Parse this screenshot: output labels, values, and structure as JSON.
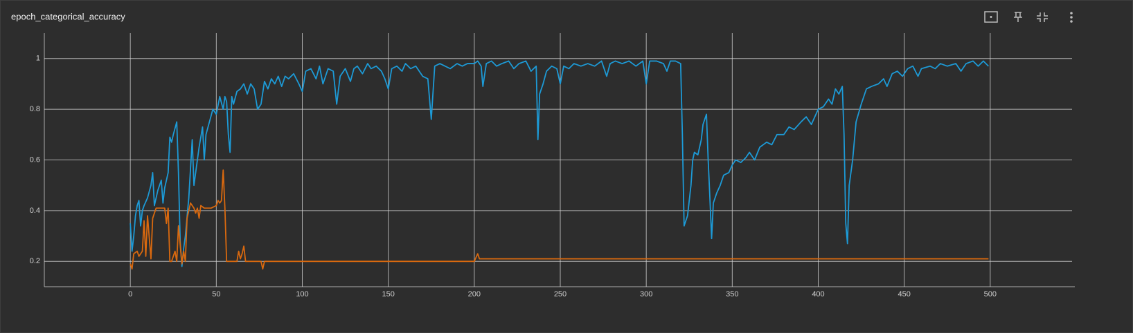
{
  "chart_data": {
    "type": "line",
    "title": "epoch_categorical_accuracy",
    "xlim": [
      -50,
      550
    ],
    "xticks": [
      0,
      50,
      100,
      150,
      200,
      250,
      300,
      350,
      400,
      450,
      500
    ],
    "ylim": [
      0.1,
      1.1
    ],
    "yticks": [
      0.2,
      0.4,
      0.6,
      0.8,
      1
    ],
    "grid": true,
    "series": [
      {
        "color": "#1d9ad6",
        "x": [
          0,
          1,
          2,
          3,
          4,
          5,
          6,
          7,
          8,
          10,
          12,
          13,
          14,
          16,
          18,
          19,
          20,
          22,
          23,
          24,
          25,
          27,
          28,
          29,
          30,
          31,
          32,
          34,
          36,
          37,
          38,
          40,
          42,
          43,
          44,
          46,
          48,
          50,
          52,
          54,
          55,
          56,
          57,
          58,
          59,
          60,
          62,
          64,
          66,
          68,
          70,
          72,
          74,
          76,
          78,
          80,
          82,
          84,
          86,
          88,
          90,
          92,
          95,
          98,
          100,
          102,
          105,
          108,
          110,
          112,
          115,
          118,
          120,
          122,
          125,
          128,
          130,
          132,
          135,
          138,
          140,
          143,
          146,
          148,
          150,
          152,
          155,
          158,
          160,
          163,
          166,
          170,
          173,
          175,
          177,
          180,
          183,
          186,
          190,
          193,
          196,
          200,
          202,
          204,
          205,
          207,
          210,
          213,
          216,
          220,
          223,
          226,
          230,
          233,
          236,
          237,
          238,
          240,
          242,
          245,
          248,
          250,
          252,
          255,
          258,
          262,
          266,
          270,
          274,
          277,
          279,
          282,
          286,
          290,
          294,
          298,
          300,
          302,
          306,
          310,
          312,
          314,
          317,
          320,
          321,
          322,
          324,
          326,
          327,
          328,
          330,
          332,
          333,
          335,
          336,
          337,
          338,
          339,
          341,
          343,
          345,
          348,
          350,
          352,
          355,
          358,
          360,
          363,
          366,
          370,
          373,
          376,
          380,
          383,
          386,
          390,
          393,
          396,
          400,
          403,
          406,
          408,
          410,
          412,
          414,
          415,
          416,
          417,
          418,
          420,
          422,
          425,
          428,
          431,
          435,
          438,
          440,
          443,
          446,
          449,
          452,
          455,
          458,
          460,
          465,
          468,
          471,
          475,
          480,
          483,
          486,
          490,
          493,
          496,
          499
        ],
        "values": [
          0.35,
          0.24,
          0.3,
          0.38,
          0.42,
          0.44,
          0.34,
          0.4,
          0.42,
          0.45,
          0.5,
          0.55,
          0.42,
          0.48,
          0.52,
          0.43,
          0.49,
          0.55,
          0.69,
          0.67,
          0.7,
          0.75,
          0.55,
          0.28,
          0.18,
          0.25,
          0.3,
          0.45,
          0.68,
          0.5,
          0.55,
          0.65,
          0.73,
          0.6,
          0.7,
          0.75,
          0.8,
          0.78,
          0.85,
          0.8,
          0.85,
          0.83,
          0.7,
          0.63,
          0.85,
          0.82,
          0.87,
          0.88,
          0.9,
          0.86,
          0.9,
          0.88,
          0.8,
          0.82,
          0.91,
          0.88,
          0.92,
          0.9,
          0.93,
          0.89,
          0.93,
          0.92,
          0.94,
          0.9,
          0.87,
          0.95,
          0.96,
          0.92,
          0.97,
          0.9,
          0.96,
          0.95,
          0.82,
          0.93,
          0.96,
          0.91,
          0.96,
          0.97,
          0.94,
          0.98,
          0.96,
          0.97,
          0.95,
          0.92,
          0.88,
          0.96,
          0.97,
          0.95,
          0.98,
          0.96,
          0.97,
          0.93,
          0.92,
          0.76,
          0.97,
          0.98,
          0.97,
          0.96,
          0.98,
          0.97,
          0.98,
          0.98,
          0.99,
          0.97,
          0.89,
          0.98,
          0.99,
          0.97,
          0.98,
          0.99,
          0.96,
          0.98,
          0.99,
          0.95,
          0.97,
          0.68,
          0.86,
          0.9,
          0.95,
          0.97,
          0.96,
          0.9,
          0.97,
          0.96,
          0.98,
          0.97,
          0.98,
          0.97,
          0.99,
          0.93,
          0.98,
          0.99,
          0.98,
          0.99,
          0.97,
          0.99,
          0.9,
          0.99,
          0.99,
          0.98,
          0.95,
          0.99,
          0.99,
          0.98,
          0.7,
          0.34,
          0.38,
          0.5,
          0.6,
          0.63,
          0.62,
          0.68,
          0.74,
          0.78,
          0.6,
          0.45,
          0.29,
          0.43,
          0.47,
          0.5,
          0.54,
          0.55,
          0.58,
          0.6,
          0.59,
          0.61,
          0.63,
          0.6,
          0.65,
          0.67,
          0.66,
          0.7,
          0.7,
          0.73,
          0.72,
          0.75,
          0.77,
          0.74,
          0.8,
          0.81,
          0.84,
          0.82,
          0.88,
          0.86,
          0.89,
          0.7,
          0.35,
          0.27,
          0.5,
          0.6,
          0.75,
          0.82,
          0.88,
          0.89,
          0.9,
          0.92,
          0.89,
          0.94,
          0.95,
          0.93,
          0.96,
          0.97,
          0.93,
          0.96,
          0.97,
          0.96,
          0.98,
          0.97,
          0.98,
          0.95,
          0.98,
          0.99,
          0.97,
          0.99,
          0.97
        ]
      },
      {
        "color": "#d9690f",
        "x": [
          0,
          1,
          2,
          4,
          5,
          7,
          8,
          9,
          10,
          12,
          13,
          15,
          18,
          20,
          21,
          22,
          23,
          24,
          26,
          27,
          28,
          30,
          31,
          32,
          33,
          35,
          37,
          38,
          39,
          40,
          41,
          43,
          47,
          50,
          51,
          52,
          53,
          54,
          55,
          56,
          62,
          63,
          64,
          65,
          66,
          67,
          76,
          77,
          78,
          200,
          202,
          203,
          499
        ],
        "values": [
          0.19,
          0.17,
          0.23,
          0.24,
          0.22,
          0.24,
          0.36,
          0.22,
          0.38,
          0.21,
          0.37,
          0.41,
          0.41,
          0.41,
          0.35,
          0.41,
          0.2,
          0.2,
          0.24,
          0.2,
          0.34,
          0.19,
          0.24,
          0.2,
          0.37,
          0.43,
          0.41,
          0.39,
          0.41,
          0.37,
          0.42,
          0.41,
          0.41,
          0.42,
          0.44,
          0.43,
          0.44,
          0.56,
          0.41,
          0.2,
          0.2,
          0.24,
          0.21,
          0.23,
          0.26,
          0.2,
          0.2,
          0.17,
          0.2,
          0.2,
          0.23,
          0.21,
          0.21
        ]
      }
    ]
  }
}
